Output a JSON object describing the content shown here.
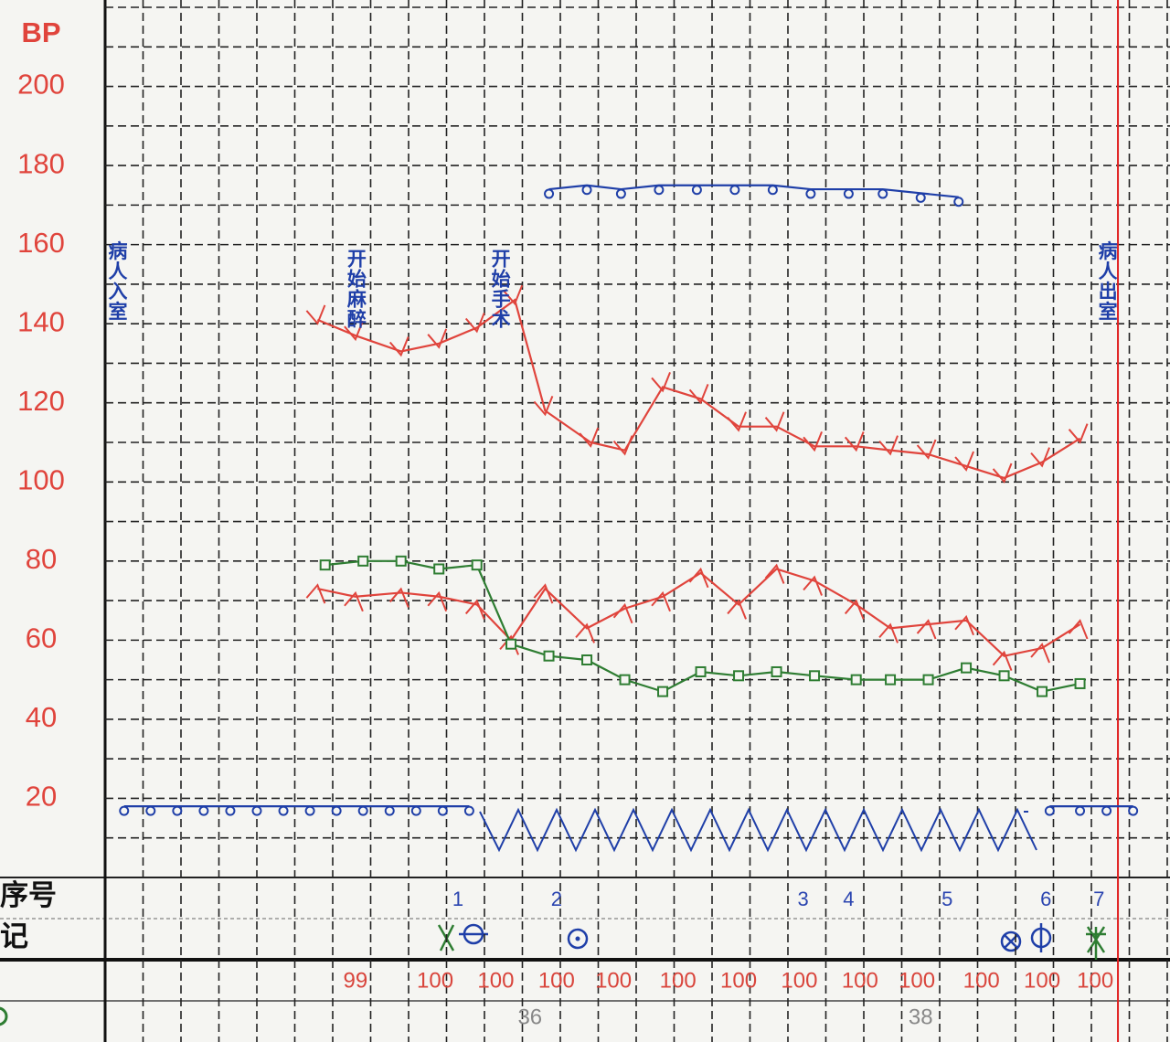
{
  "chart_data": {
    "type": "line",
    "ylabel": "BP",
    "ylim": [
      0,
      220
    ],
    "yticks": [
      20,
      40,
      60,
      80,
      100,
      120,
      140,
      160,
      180,
      200
    ],
    "xlim": [
      0,
      28
    ],
    "grid": true,
    "tick_color": "#e0443c",
    "series": [
      {
        "color": "#e0443c",
        "marker": "v",
        "x": [
          5.6,
          6.6,
          7.8,
          8.8,
          9.8,
          10.8,
          11.6,
          12.8,
          13.7,
          14.7,
          15.7,
          16.7,
          17.7,
          18.7,
          19.8,
          20.7,
          21.7,
          22.7,
          23.7,
          24.7,
          25.7
        ],
        "values": [
          141,
          137,
          133,
          135,
          139,
          146,
          118,
          110,
          108,
          124,
          121,
          114,
          114,
          109,
          109,
          108,
          107,
          104,
          101,
          105,
          111
        ]
      },
      {
        "color": "#e0443c",
        "marker": "^",
        "x": [
          5.6,
          6.6,
          7.8,
          8.8,
          9.8,
          10.7,
          11.6,
          12.7,
          13.7,
          14.7,
          15.7,
          16.7,
          17.7,
          18.7,
          19.8,
          20.7,
          21.7,
          22.7,
          23.7,
          24.7,
          25.7
        ],
        "values": [
          73,
          71,
          72,
          71,
          69,
          60,
          73,
          63,
          68,
          71,
          77,
          69,
          78,
          75,
          69,
          63,
          64,
          65,
          56,
          58,
          64
        ]
      },
      {
        "color": "#2e7d32",
        "marker": "square",
        "x": [
          5.8,
          6.8,
          7.8,
          8.8,
          9.8,
          10.7,
          11.7,
          12.7,
          13.7,
          14.7,
          15.7,
          16.7,
          17.7,
          18.7,
          19.8,
          20.7,
          21.7,
          22.7,
          23.7,
          24.7,
          25.7
        ],
        "values": [
          79,
          80,
          80,
          78,
          79,
          59,
          56,
          55,
          50,
          47,
          52,
          51,
          52,
          51,
          50,
          50,
          50,
          53,
          51,
          47,
          49
        ]
      },
      {
        "color": "#1f3fa8",
        "marker": "circle",
        "x": [
          11.7,
          12.7,
          13.6,
          14.6,
          15.6,
          16.6,
          17.6,
          18.6,
          19.6,
          20.5,
          21.5,
          22.5
        ],
        "values": [
          174,
          175,
          174,
          175,
          175,
          175,
          175,
          174,
          174,
          174,
          173,
          172
        ]
      },
      {
        "color": "#1f3fa8",
        "marker": "circle",
        "x": [
          0.5,
          1.2,
          1.9,
          2.6,
          3.3,
          4.0,
          4.7,
          5.4,
          6.1,
          6.8,
          7.5,
          8.2,
          8.9,
          9.6,
          17.0,
          24.9,
          25.7,
          26.4,
          27.1
        ],
        "values": [
          18,
          18,
          18,
          18,
          18,
          18,
          18,
          18,
          18,
          18,
          18,
          18,
          18,
          18,
          null,
          18,
          18,
          18,
          18
        ]
      }
    ],
    "annotations": [
      {
        "text": "病人入室",
        "x": 0.3,
        "y": 161
      },
      {
        "text": "开始麻醉",
        "x": 6.6,
        "y": 159
      },
      {
        "text": "开始手术",
        "x": 10.4,
        "y": 159
      },
      {
        "text": "病人出室",
        "x": 26.4,
        "y": 161
      }
    ],
    "vline": {
      "x": 26.7,
      "color": "#e02020"
    }
  },
  "record": {
    "sequence": {
      "label": "序号",
      "x": [
        9.3,
        11.9,
        18.4,
        19.6,
        22.2,
        24.8,
        26.2
      ],
      "values": [
        1,
        2,
        3,
        4,
        5,
        6,
        7
      ]
    },
    "marks": {
      "label": "记"
    },
    "spo2": {
      "x": [
        6.6,
        8.7,
        10.3,
        11.9,
        13.4,
        15.1,
        16.7,
        18.3,
        19.9,
        21.4,
        23.1,
        24.7,
        26.1
      ],
      "values": [
        99,
        100,
        100,
        100,
        100,
        100,
        100,
        100,
        100,
        100,
        100,
        100,
        100
      ]
    },
    "temperature": {
      "x": [
        11.2,
        21.5
      ],
      "values": [
        36,
        38
      ]
    }
  }
}
